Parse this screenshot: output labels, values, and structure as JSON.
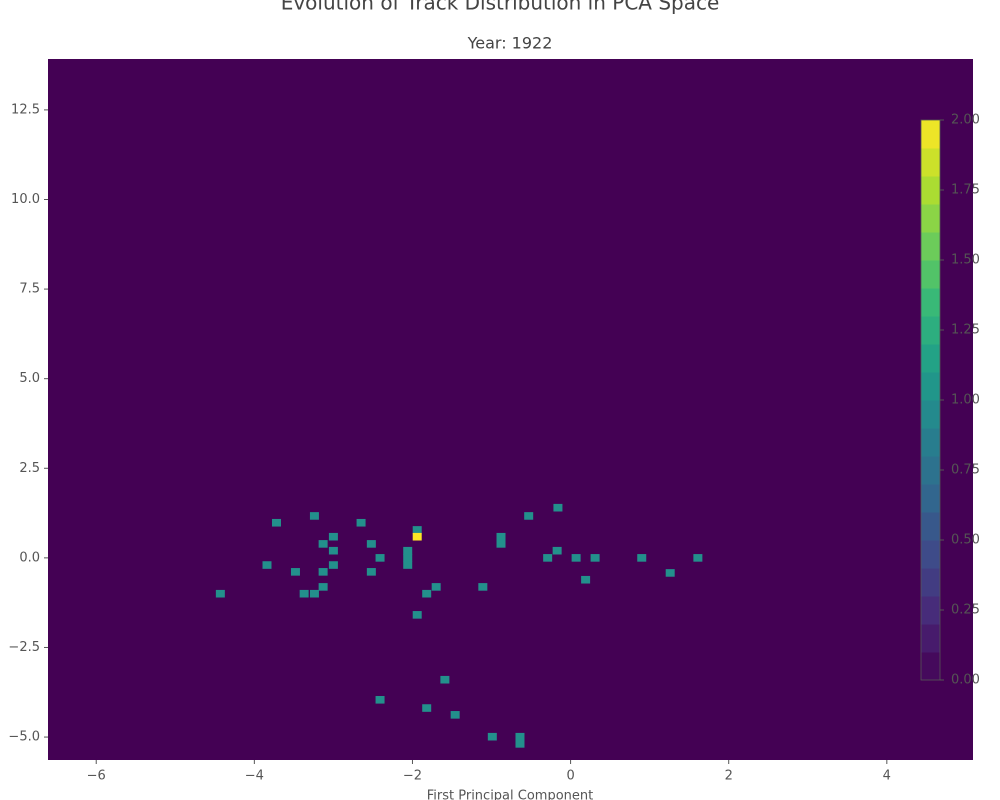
{
  "chart_data": {
    "type": "heatmap2d",
    "title": "Evolution of Track Distribution in PCA Space",
    "subtitle": "Year: 1922",
    "xlabel": "First Principal Component",
    "cmap": "viridis",
    "x": [
      -3.72,
      -3.24,
      -2.65,
      -3.0,
      -3.13,
      -2.52,
      -3.0,
      -2.41,
      -2.06,
      -2.06,
      -2.06,
      -1.94,
      -1.94,
      -3.84,
      -3.48,
      -3.13,
      -3.0,
      -2.52,
      -3.13,
      -3.37,
      -3.24,
      -4.43,
      -1.7,
      -1.82,
      -1.94,
      -1.11,
      -0.88,
      -0.88,
      -0.53,
      -0.16,
      -0.17,
      -0.29,
      0.07,
      0.31,
      0.19,
      0.9,
      1.26,
      1.61,
      -1.59,
      -2.41,
      -1.82,
      -1.46,
      -0.99,
      -0.64,
      -0.64
    ],
    "y": [
      0.98,
      1.17,
      0.98,
      0.59,
      0.39,
      0.39,
      0.2,
      0,
      0.2,
      0,
      -0.2,
      0.78,
      0.59,
      -0.2,
      -0.39,
      -0.39,
      -0.2,
      -0.39,
      -0.81,
      -1.0,
      -1.0,
      -1.0,
      -0.81,
      -1.0,
      -1.59,
      -0.81,
      0.59,
      0.39,
      1.17,
      1.4,
      0.2,
      0,
      0,
      0,
      -0.61,
      0,
      -0.42,
      0,
      -3.4,
      -3.96,
      -4.19,
      -4.38,
      -4.99,
      -4.99,
      -5.19
    ],
    "values": [
      1,
      1,
      1,
      1,
      1,
      1,
      1,
      1,
      1,
      1,
      1,
      1,
      2,
      1,
      1,
      1,
      1,
      1,
      1,
      1,
      1,
      1,
      1,
      1,
      1,
      1,
      1,
      1,
      1,
      1,
      1,
      1,
      1,
      1,
      1,
      1,
      1,
      1,
      1,
      1,
      1,
      1,
      1,
      1,
      1
    ],
    "xlim": [
      -6.61,
      5.09
    ],
    "ylim": [
      -5.64,
      13.92
    ],
    "xticks": [
      {
        "value": -6,
        "label": "−6"
      },
      {
        "value": -4,
        "label": "−4"
      },
      {
        "value": -2,
        "label": "−2"
      },
      0,
      2,
      4
    ],
    "yticks": [
      {
        "value": -5,
        "label": "−5.0"
      },
      {
        "value": -2.5,
        "label": "−2.5"
      },
      {
        "value": 0,
        "label": "0.0"
      },
      {
        "value": 2.5,
        "label": "2.5"
      },
      {
        "value": 5,
        "label": "5.0"
      },
      {
        "value": 7.5,
        "label": "7.5"
      },
      {
        "value": 10,
        "label": "10.0"
      },
      {
        "value": 12.5,
        "label": "12.5"
      }
    ],
    "clim": [
      0,
      2
    ],
    "cticks": [
      {
        "value": 0,
        "label": "0.00"
      },
      {
        "value": 0.25,
        "label": "0.25"
      },
      {
        "value": 0.5,
        "label": "0.50"
      },
      {
        "value": 0.75,
        "label": "0.75"
      },
      {
        "value": 1,
        "label": "1.00"
      },
      {
        "value": 1.25,
        "label": "1.25"
      },
      {
        "value": 1.5,
        "label": "1.50"
      },
      {
        "value": 1.75,
        "label": "1.75"
      },
      {
        "value": 2,
        "label": "2.00"
      }
    ]
  }
}
